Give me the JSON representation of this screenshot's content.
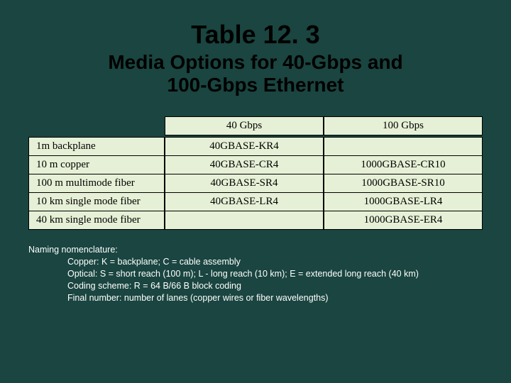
{
  "title": "Table 12. 3",
  "subtitle_line1": "Media Options for 40-Gbps and",
  "subtitle_line2": "100-Gbps Ethernet",
  "table": {
    "headers": {
      "col1": "40 Gbps",
      "col2": "100 Gbps"
    },
    "rows": [
      {
        "label": "1m backplane",
        "c40": "40GBASE-KR4",
        "c100": ""
      },
      {
        "label": "10 m copper",
        "c40": "40GBASE-CR4",
        "c100": "1000GBASE-CR10"
      },
      {
        "label": "100 m multimode fiber",
        "c40": "40GBASE-SR4",
        "c100": "1000GBASE-SR10"
      },
      {
        "label": "10 km single mode fiber",
        "c40": "40GBASE-LR4",
        "c100": "1000GBASE-LR4"
      },
      {
        "label": "40 km single mode fiber",
        "c40": "",
        "c100": "1000GBASE-ER4"
      }
    ]
  },
  "notes": {
    "heading": "Naming nomenclature:",
    "lines": [
      "Copper: K = backplane; C = cable assembly",
      "Optical: S = short reach (100 m); L - long reach (10 km); E = extended long reach (40 km)",
      "Coding scheme: R = 64 B/66 B block coding",
      "Final number: number of lanes (copper wires or fiber wavelengths)"
    ]
  },
  "colors": {
    "background": "#1a4540",
    "cell_bg": "#e6f0d6",
    "text_dark": "#000000",
    "text_light": "#ffffff"
  }
}
